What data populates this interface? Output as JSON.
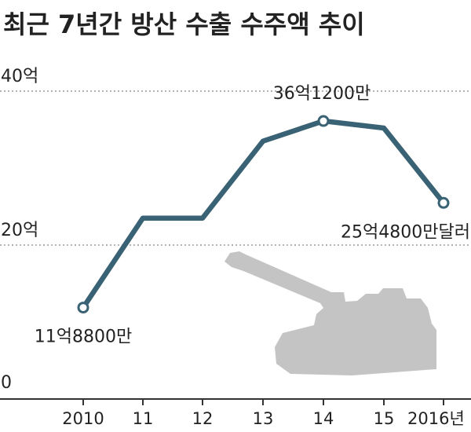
{
  "title": "최근 7년간 방산 수출 수주액 추이",
  "colors": {
    "line": "#3a6275",
    "marker_fill": "#ffffff",
    "grid": "#9a9a9a",
    "axis": "#333333",
    "silhouette": "#c4c4c4"
  },
  "illustration": "howitzer-silhouette",
  "chart_data": {
    "type": "line",
    "title": "최근 7년간 방산 수출 수주액 추이",
    "xlabel": "",
    "ylabel": "",
    "categories": [
      "2010",
      "11",
      "12",
      "13",
      "14",
      "15",
      "2016년"
    ],
    "y_ticks": [
      {
        "value": 0,
        "label": "0"
      },
      {
        "value": 20,
        "label": "20억"
      },
      {
        "value": 40,
        "label": "40억"
      }
    ],
    "ylim": [
      0,
      40
    ],
    "grid": "dashed at 20억 and 40억",
    "series": [
      {
        "values": [
          11.88,
          23.5,
          23.5,
          33.5,
          36.12,
          35.2,
          25.48
        ],
        "markers": [
          0,
          4,
          6
        ]
      }
    ],
    "data_labels": [
      {
        "index": 0,
        "text": "11억8800만"
      },
      {
        "index": 4,
        "text": "36억1200만"
      },
      {
        "index": 6,
        "text": "25억4800만달러"
      }
    ]
  }
}
